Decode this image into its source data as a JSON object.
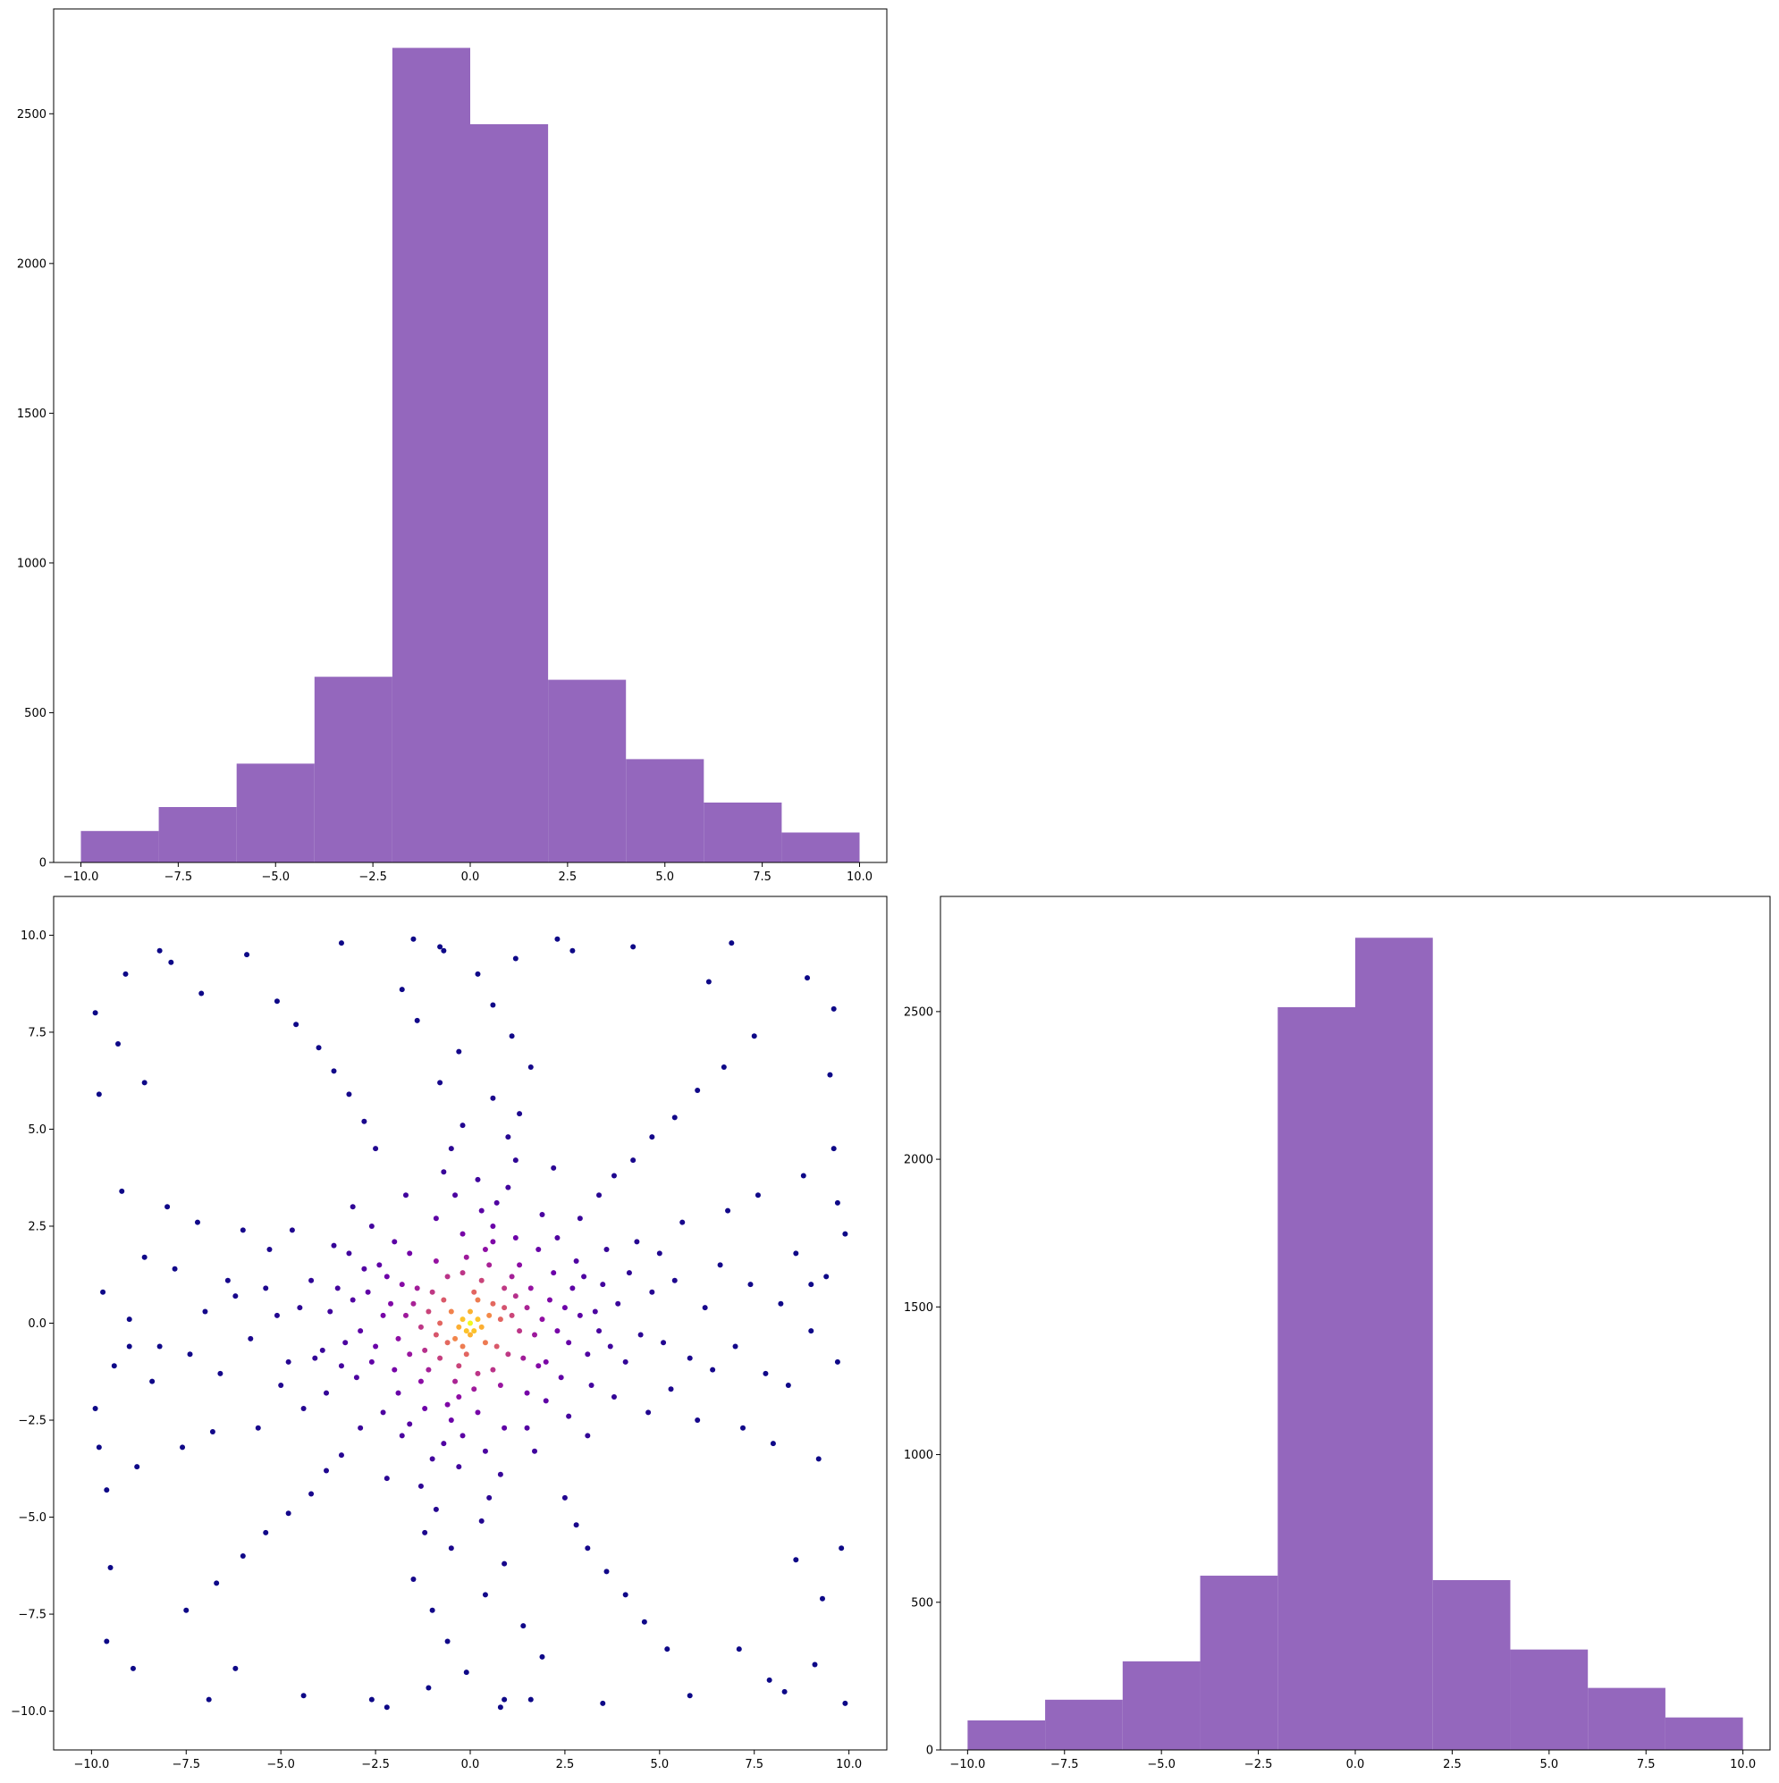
{
  "colors": {
    "bar": "#9467bd",
    "axis": "#000000",
    "background": "#ffffff",
    "scatter_colormap": [
      "#0d0887",
      "#41049d",
      "#6a00a8",
      "#8f0da4",
      "#b12a90",
      "#cc4778",
      "#e16462",
      "#f2844b",
      "#fca636",
      "#fcce25",
      "#f0f921"
    ]
  },
  "chart_data": [
    {
      "id": "top-histogram",
      "type": "bar",
      "title": "",
      "xlabel": "",
      "ylabel": "",
      "xlim": [
        -10.7,
        10.7
      ],
      "ylim": [
        0,
        2850
      ],
      "bin_edges": [
        -10,
        -8,
        -6,
        -4,
        -2,
        0,
        2,
        4,
        6,
        8,
        10
      ],
      "values": [
        105,
        185,
        330,
        620,
        2720,
        2465,
        610,
        345,
        200,
        100
      ],
      "xticks": [
        -10.0,
        -7.5,
        -5.0,
        -2.5,
        0.0,
        2.5,
        5.0,
        7.5,
        10.0
      ],
      "xtick_labels": [
        "−10.0",
        "−7.5",
        "−5.0",
        "−2.5",
        "0.0",
        "2.5",
        "5.0",
        "7.5",
        "10.0"
      ],
      "yticks": [
        0,
        500,
        1000,
        1500,
        2000,
        2500
      ],
      "ytick_labels": [
        "0",
        "500",
        "1000",
        "1500",
        "2000",
        "2500"
      ],
      "grid": false,
      "legend": "none"
    },
    {
      "id": "scatter",
      "type": "scatter",
      "title": "",
      "xlabel": "",
      "ylabel": "",
      "xlim": [
        -11,
        11
      ],
      "ylim": [
        -11,
        11
      ],
      "xticks": [
        -10.0,
        -7.5,
        -5.0,
        -2.5,
        0.0,
        2.5,
        5.0,
        7.5,
        10.0
      ],
      "xtick_labels": [
        "−10.0",
        "−7.5",
        "−5.0",
        "−2.5",
        "0.0",
        "2.5",
        "5.0",
        "7.5",
        "10.0"
      ],
      "yticks": [
        -10.0,
        -7.5,
        -5.0,
        -2.5,
        0.0,
        2.5,
        5.0,
        7.5,
        10.0
      ],
      "ytick_labels": [
        "−10.0",
        "−7.5",
        "−5.0",
        "−2.5",
        "0.0",
        "2.5",
        "5.0",
        "7.5",
        "10.0"
      ],
      "points": [
        [
          0.0,
          0.0
        ],
        [
          0.2,
          0.1
        ],
        [
          -0.2,
          0.1
        ],
        [
          0.1,
          -0.2
        ],
        [
          -0.1,
          -0.2
        ],
        [
          0.3,
          -0.1
        ],
        [
          -0.3,
          -0.1
        ],
        [
          0.0,
          0.3
        ],
        [
          0.0,
          -0.3
        ],
        [
          0.5,
          0.2
        ],
        [
          -0.5,
          0.3
        ],
        [
          0.4,
          -0.5
        ],
        [
          -0.4,
          -0.4
        ],
        [
          0.6,
          0.5
        ],
        [
          -0.6,
          -0.5
        ],
        [
          0.2,
          0.6
        ],
        [
          -0.2,
          -0.6
        ],
        [
          0.8,
          0.1
        ],
        [
          -0.8,
          0.0
        ],
        [
          0.1,
          0.8
        ],
        [
          -0.1,
          -0.8
        ],
        [
          0.7,
          -0.6
        ],
        [
          -0.7,
          0.6
        ],
        [
          0.9,
          0.4
        ],
        [
          -0.9,
          -0.3
        ],
        [
          1.1,
          0.2
        ],
        [
          -1.1,
          0.3
        ],
        [
          0.3,
          1.1
        ],
        [
          -0.3,
          -1.1
        ],
        [
          1.0,
          -0.8
        ],
        [
          -1.0,
          0.8
        ],
        [
          0.9,
          0.9
        ],
        [
          -0.8,
          -0.9
        ],
        [
          1.3,
          -0.2
        ],
        [
          -1.3,
          -0.1
        ],
        [
          0.2,
          -1.3
        ],
        [
          -0.2,
          1.3
        ],
        [
          1.2,
          0.7
        ],
        [
          -1.2,
          -0.7
        ],
        [
          0.6,
          -1.2
        ],
        [
          -0.6,
          1.2
        ],
        [
          1.5,
          0.4
        ],
        [
          -1.5,
          0.5
        ],
        [
          0.5,
          1.5
        ],
        [
          -0.4,
          -1.5
        ],
        [
          1.4,
          -0.9
        ],
        [
          -1.4,
          0.9
        ],
        [
          1.1,
          1.2
        ],
        [
          -1.1,
          -1.2
        ],
        [
          1.7,
          -0.3
        ],
        [
          -1.7,
          0.2
        ],
        [
          0.1,
          -1.7
        ],
        [
          -0.1,
          1.7
        ],
        [
          1.6,
          0.9
        ],
        [
          -1.6,
          -0.8
        ],
        [
          0.8,
          -1.6
        ],
        [
          -0.9,
          1.6
        ],
        [
          1.9,
          0.1
        ],
        [
          -1.9,
          -0.4
        ],
        [
          0.4,
          1.9
        ],
        [
          -0.3,
          -1.9
        ],
        [
          1.8,
          -1.1
        ],
        [
          -1.8,
          1.0
        ],
        [
          1.3,
          1.5
        ],
        [
          -1.3,
          -1.5
        ],
        [
          2.1,
          0.6
        ],
        [
          -2.1,
          0.5
        ],
        [
          0.6,
          2.1
        ],
        [
          -0.6,
          -2.1
        ],
        [
          2.0,
          -1.0
        ],
        [
          -2.0,
          -1.2
        ],
        [
          1.5,
          -1.8
        ],
        [
          -1.6,
          1.8
        ],
        [
          2.3,
          -0.2
        ],
        [
          -2.3,
          0.2
        ],
        [
          0.2,
          -2.3
        ],
        [
          -0.2,
          2.3
        ],
        [
          2.2,
          1.3
        ],
        [
          -2.2,
          1.2
        ],
        [
          1.2,
          2.2
        ],
        [
          -1.2,
          -2.2
        ],
        [
          2.5,
          0.4
        ],
        [
          -2.5,
          -0.6
        ],
        [
          0.6,
          2.5
        ],
        [
          -0.5,
          -2.5
        ],
        [
          2.4,
          -1.4
        ],
        [
          -2.4,
          1.5
        ],
        [
          1.8,
          1.9
        ],
        [
          -1.9,
          -1.8
        ],
        [
          2.7,
          0.9
        ],
        [
          -2.7,
          0.8
        ],
        [
          0.9,
          -2.7
        ],
        [
          -0.9,
          2.7
        ],
        [
          2.6,
          -0.5
        ],
        [
          -2.6,
          -1.0
        ],
        [
          2.0,
          -2.0
        ],
        [
          -2.0,
          2.1
        ],
        [
          2.9,
          0.2
        ],
        [
          -2.9,
          -0.2
        ],
        [
          0.3,
          2.9
        ],
        [
          -0.2,
          -2.9
        ],
        [
          2.8,
          1.6
        ],
        [
          -2.8,
          1.4
        ],
        [
          1.5,
          -2.7
        ],
        [
          -1.6,
          -2.6
        ],
        [
          3.1,
          -0.8
        ],
        [
          -3.1,
          0.6
        ],
        [
          0.7,
          3.1
        ],
        [
          -0.7,
          -3.1
        ],
        [
          3.0,
          1.2
        ],
        [
          -3.0,
          -1.4
        ],
        [
          2.3,
          2.2
        ],
        [
          -2.3,
          -2.3
        ],
        [
          3.3,
          0.3
        ],
        [
          -3.3,
          -0.5
        ],
        [
          0.4,
          -3.3
        ],
        [
          -0.4,
          3.3
        ],
        [
          3.2,
          -1.6
        ],
        [
          -3.2,
          1.8
        ],
        [
          1.9,
          2.8
        ],
        [
          -1.8,
          -2.9
        ],
        [
          3.5,
          1.0
        ],
        [
          -3.5,
          0.9
        ],
        [
          1.0,
          3.5
        ],
        [
          -1.0,
          -3.5
        ],
        [
          3.4,
          -0.2
        ],
        [
          -3.4,
          -1.1
        ],
        [
          2.6,
          -2.4
        ],
        [
          -2.6,
          2.5
        ],
        [
          3.7,
          -0.6
        ],
        [
          -3.7,
          0.3
        ],
        [
          0.2,
          3.7
        ],
        [
          -0.3,
          -3.7
        ],
        [
          3.6,
          1.9
        ],
        [
          -3.6,
          2.0
        ],
        [
          1.7,
          -3.3
        ],
        [
          -1.7,
          3.3
        ],
        [
          3.9,
          0.5
        ],
        [
          -3.9,
          -0.7
        ],
        [
          0.8,
          -3.9
        ],
        [
          -0.7,
          3.9
        ],
        [
          3.8,
          -1.9
        ],
        [
          -3.8,
          -1.8
        ],
        [
          2.9,
          2.7
        ],
        [
          -2.9,
          -2.7
        ],
        [
          4.2,
          1.3
        ],
        [
          -4.2,
          1.1
        ],
        [
          1.2,
          4.2
        ],
        [
          -1.3,
          -4.2
        ],
        [
          4.1,
          -1.0
        ],
        [
          -4.1,
          -0.9
        ],
        [
          3.1,
          -2.9
        ],
        [
          -3.1,
          3.0
        ],
        [
          4.5,
          -0.3
        ],
        [
          -4.5,
          0.4
        ],
        [
          0.5,
          -4.5
        ],
        [
          -0.5,
          4.5
        ],
        [
          4.4,
          2.1
        ],
        [
          -4.4,
          -2.2
        ],
        [
          2.2,
          4.0
        ],
        [
          -2.2,
          -4.0
        ],
        [
          4.8,
          0.8
        ],
        [
          -4.8,
          -1.0
        ],
        [
          1.0,
          4.8
        ],
        [
          -0.9,
          -4.8
        ],
        [
          4.7,
          -2.3
        ],
        [
          -4.7,
          2.4
        ],
        [
          3.4,
          3.3
        ],
        [
          -3.4,
          -3.4
        ],
        [
          5.1,
          -0.5
        ],
        [
          -5.1,
          0.2
        ],
        [
          0.3,
          -5.1
        ],
        [
          -0.2,
          5.1
        ],
        [
          5.0,
          1.8
        ],
        [
          -5.0,
          -1.6
        ],
        [
          2.5,
          -4.5
        ],
        [
          -2.5,
          4.5
        ],
        [
          5.4,
          1.1
        ],
        [
          -5.4,
          0.9
        ],
        [
          1.3,
          5.4
        ],
        [
          -1.2,
          -5.4
        ],
        [
          5.3,
          -1.7
        ],
        [
          -5.3,
          1.9
        ],
        [
          3.8,
          3.8
        ],
        [
          -3.8,
          -3.8
        ],
        [
          5.8,
          -0.9
        ],
        [
          -5.8,
          -0.4
        ],
        [
          0.6,
          5.8
        ],
        [
          -0.5,
          -5.8
        ],
        [
          5.6,
          2.6
        ],
        [
          -5.6,
          -2.7
        ],
        [
          2.8,
          -5.2
        ],
        [
          -2.8,
          5.2
        ],
        [
          6.2,
          0.4
        ],
        [
          -6.2,
          0.7
        ],
        [
          0.9,
          -6.2
        ],
        [
          -0.8,
          6.2
        ],
        [
          6.0,
          -2.5
        ],
        [
          -6.0,
          2.4
        ],
        [
          4.3,
          4.2
        ],
        [
          -4.2,
          -4.4
        ],
        [
          6.6,
          1.5
        ],
        [
          -6.6,
          -1.3
        ],
        [
          1.6,
          6.6
        ],
        [
          -1.5,
          -6.6
        ],
        [
          6.4,
          -1.2
        ],
        [
          -6.4,
          1.1
        ],
        [
          3.1,
          -5.8
        ],
        [
          -3.2,
          5.9
        ],
        [
          7.0,
          -0.6
        ],
        [
          -7.0,
          0.3
        ],
        [
          0.4,
          -7.0
        ],
        [
          -0.3,
          7.0
        ],
        [
          6.8,
          2.9
        ],
        [
          -6.8,
          -2.8
        ],
        [
          4.8,
          4.8
        ],
        [
          -4.8,
          -4.9
        ],
        [
          7.4,
          1.0
        ],
        [
          -7.4,
          -0.8
        ],
        [
          1.1,
          7.4
        ],
        [
          -1.0,
          -7.4
        ],
        [
          7.2,
          -2.7
        ],
        [
          -7.2,
          2.6
        ],
        [
          3.6,
          -6.4
        ],
        [
          -3.6,
          6.5
        ],
        [
          7.8,
          -1.3
        ],
        [
          -7.8,
          1.4
        ],
        [
          1.4,
          -7.8
        ],
        [
          -1.4,
          7.8
        ],
        [
          7.6,
          3.3
        ],
        [
          -7.6,
          -3.2
        ],
        [
          5.4,
          5.3
        ],
        [
          -5.4,
          -5.4
        ],
        [
          8.2,
          0.5
        ],
        [
          -8.2,
          -0.6
        ],
        [
          0.6,
          8.2
        ],
        [
          -0.6,
          -8.2
        ],
        [
          8.0,
          -3.1
        ],
        [
          -8.0,
          3.0
        ],
        [
          4.1,
          -7.0
        ],
        [
          -4.0,
          7.1
        ],
        [
          8.6,
          1.8
        ],
        [
          -8.6,
          1.7
        ],
        [
          1.9,
          -8.6
        ],
        [
          -1.8,
          8.6
        ],
        [
          8.4,
          -1.6
        ],
        [
          -8.4,
          -1.5
        ],
        [
          6.0,
          6.0
        ],
        [
          -6.0,
          -6.0
        ],
        [
          9.0,
          -0.2
        ],
        [
          -9.0,
          0.1
        ],
        [
          0.2,
          9.0
        ],
        [
          -0.1,
          -9.0
        ],
        [
          8.8,
          3.8
        ],
        [
          -8.8,
          -3.7
        ],
        [
          4.6,
          -7.7
        ],
        [
          -4.6,
          7.7
        ],
        [
          9.4,
          1.2
        ],
        [
          -9.4,
          -1.1
        ],
        [
          1.2,
          9.4
        ],
        [
          -1.1,
          -9.4
        ],
        [
          9.2,
          -3.5
        ],
        [
          -9.2,
          3.4
        ],
        [
          6.7,
          6.6
        ],
        [
          -6.7,
          -6.7
        ],
        [
          9.7,
          -1.0
        ],
        [
          -9.7,
          0.8
        ],
        [
          0.9,
          -9.7
        ],
        [
          -0.8,
          9.7
        ],
        [
          9.6,
          4.5
        ],
        [
          -9.6,
          -4.3
        ],
        [
          5.2,
          -8.4
        ],
        [
          -5.1,
          8.3
        ],
        [
          9.9,
          2.3
        ],
        [
          -9.9,
          -2.2
        ],
        [
          2.3,
          9.9
        ],
        [
          -2.2,
          -9.9
        ],
        [
          9.8,
          -5.8
        ],
        [
          -9.8,
          5.9
        ],
        [
          7.5,
          7.4
        ],
        [
          -7.5,
          -7.4
        ],
        [
          8.9,
          8.9
        ],
        [
          -8.9,
          -8.9
        ],
        [
          9.1,
          -8.8
        ],
        [
          -9.1,
          9.0
        ],
        [
          8.3,
          -9.5
        ],
        [
          -8.2,
          9.6
        ],
        [
          9.6,
          8.1
        ],
        [
          -9.6,
          -8.2
        ],
        [
          7.9,
          -9.2
        ],
        [
          -7.9,
          9.3
        ],
        [
          9.3,
          -7.1
        ],
        [
          -9.3,
          7.2
        ],
        [
          6.9,
          9.8
        ],
        [
          -6.9,
          -9.7
        ],
        [
          9.9,
          -9.8
        ],
        [
          -9.9,
          8.0
        ],
        [
          5.8,
          -9.6
        ],
        [
          -5.9,
          9.5
        ],
        [
          9.5,
          6.4
        ],
        [
          -9.5,
          -6.3
        ],
        [
          4.3,
          9.7
        ],
        [
          -4.4,
          -9.6
        ],
        [
          8.6,
          -6.1
        ],
        [
          -8.6,
          6.2
        ],
        [
          3.5,
          -9.8
        ],
        [
          -3.4,
          9.8
        ],
        [
          9.7,
          3.1
        ],
        [
          -9.8,
          -3.2
        ],
        [
          2.7,
          9.6
        ],
        [
          -2.6,
          -9.7
        ],
        [
          7.1,
          -8.4
        ],
        [
          -7.1,
          8.5
        ],
        [
          1.6,
          -9.7
        ],
        [
          -1.5,
          9.9
        ],
        [
          9.0,
          1.0
        ],
        [
          -9.0,
          -0.6
        ],
        [
          0.8,
          -9.9
        ],
        [
          -0.7,
          9.6
        ],
        [
          6.3,
          8.8
        ],
        [
          -6.2,
          -8.9
        ]
      ],
      "grid": false,
      "legend": "none"
    },
    {
      "id": "right-histogram",
      "type": "bar",
      "title": "",
      "xlabel": "",
      "ylabel": "",
      "xlim": [
        -10.7,
        10.7
      ],
      "ylim": [
        0,
        2890
      ],
      "bin_edges": [
        -10,
        -8,
        -6,
        -4,
        -2,
        0,
        2,
        4,
        6,
        8,
        10
      ],
      "values": [
        100,
        170,
        300,
        590,
        2515,
        2750,
        575,
        340,
        210,
        110
      ],
      "xticks": [
        -10.0,
        -7.5,
        -5.0,
        -2.5,
        0.0,
        2.5,
        5.0,
        7.5,
        10.0
      ],
      "xtick_labels": [
        "−10.0",
        "−7.5",
        "−5.0",
        "−2.5",
        "0.0",
        "2.5",
        "5.0",
        "7.5",
        "10.0"
      ],
      "yticks": [
        0,
        500,
        1000,
        1500,
        2000,
        2500
      ],
      "ytick_labels": [
        "0",
        "500",
        "1000",
        "1500",
        "2000",
        "2500"
      ],
      "grid": false,
      "legend": "none"
    }
  ]
}
